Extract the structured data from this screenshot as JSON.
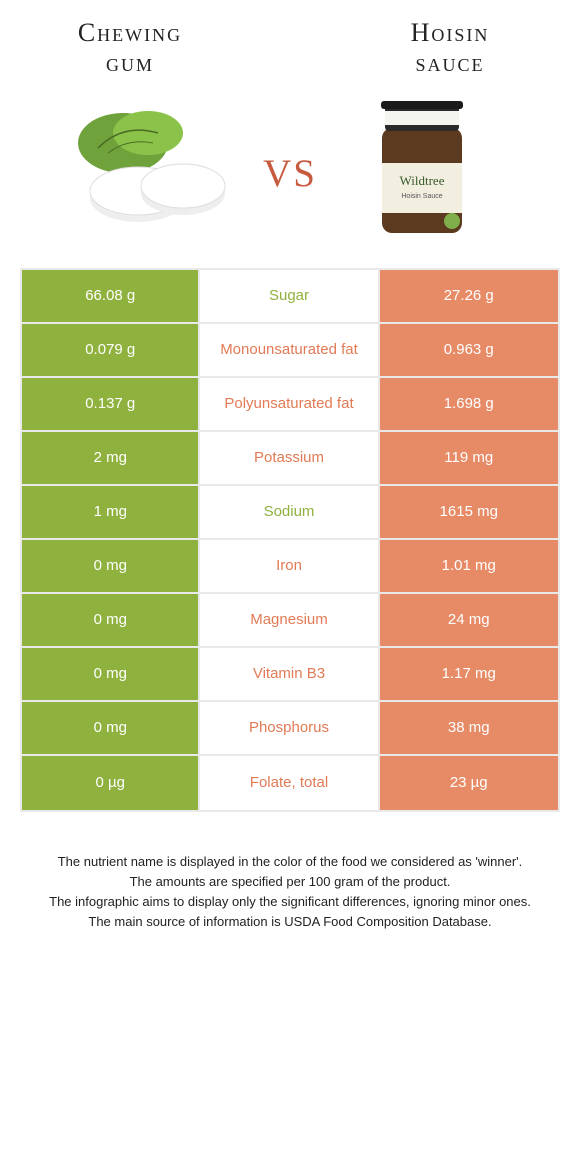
{
  "header": {
    "left_title_line1": "Chewing",
    "left_title_line2": "gum",
    "right_title_line1": "Hoisin",
    "right_title_line2": "sauce",
    "vs_label": "vs"
  },
  "colors": {
    "left_bg": "#8fb13e",
    "right_bg": "#e78a66",
    "mid_green": "#8fb13e",
    "mid_orange": "#e27a55",
    "border": "#e9e9e9",
    "vs_color": "#c65b3f"
  },
  "rows": [
    {
      "left": "66.08 g",
      "label": "Sugar",
      "right": "27.26 g",
      "winner": "left"
    },
    {
      "left": "0.079 g",
      "label": "Monounsaturated fat",
      "right": "0.963 g",
      "winner": "right"
    },
    {
      "left": "0.137 g",
      "label": "Polyunsaturated fat",
      "right": "1.698 g",
      "winner": "right"
    },
    {
      "left": "2 mg",
      "label": "Potassium",
      "right": "119 mg",
      "winner": "right"
    },
    {
      "left": "1 mg",
      "label": "Sodium",
      "right": "1615 mg",
      "winner": "left"
    },
    {
      "left": "0 mg",
      "label": "Iron",
      "right": "1.01 mg",
      "winner": "right"
    },
    {
      "left": "0 mg",
      "label": "Magnesium",
      "right": "24 mg",
      "winner": "right"
    },
    {
      "left": "0 mg",
      "label": "Vitamin B3",
      "right": "1.17 mg",
      "winner": "right"
    },
    {
      "left": "0 mg",
      "label": "Phosphorus",
      "right": "38 mg",
      "winner": "right"
    },
    {
      "left": "0 µg",
      "label": "Folate, total",
      "right": "23 µg",
      "winner": "right"
    }
  ],
  "footer": {
    "line1": "The nutrient name is displayed in the color of the food we considered as 'winner'.",
    "line2": "The amounts are specified per 100 gram of the product.",
    "line3": "The infographic aims to display only the significant differences, ignoring minor ones.",
    "line4": "The main source of information is USDA Food Composition Database."
  }
}
